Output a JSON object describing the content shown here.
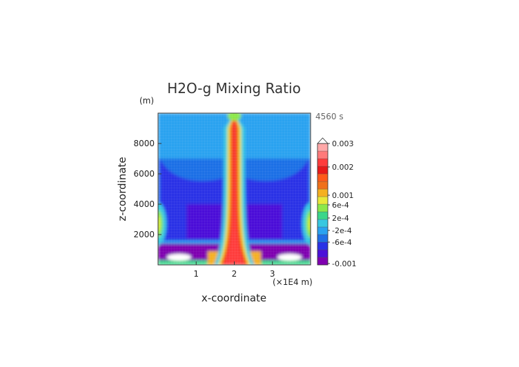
{
  "chart_data": {
    "type": "heatmap",
    "title": "H2O-g Mixing Ratio",
    "xlabel": "x-coordinate",
    "ylabel": "z-coordinate",
    "x_unit": "(×1E4 m)",
    "y_unit": "(m)",
    "time_label": "4560 s",
    "xlim": [
      0,
      4
    ],
    "ylim": [
      0,
      10000
    ],
    "x_ticks": [
      "1",
      "2",
      "3"
    ],
    "y_ticks": [
      "2000",
      "4000",
      "6000",
      "8000"
    ],
    "colorbar": {
      "labels": [
        "0.003",
        "0.002",
        "0.001",
        "6e-4",
        "2e-4",
        "-2e-4",
        "-6e-4",
        "-0.001"
      ],
      "colors": [
        "#7f00b0",
        "#4b10d8",
        "#2a32e6",
        "#1f6fe6",
        "#2aa2f0",
        "#38c8e0",
        "#3ad68a",
        "#8be84a",
        "#e8e83a",
        "#f5b020",
        "#f0701a",
        "#ff5a1a",
        "#e81a1a",
        "#ff3c3c",
        "#ff7a7a",
        "#ffa8a8"
      ]
    },
    "structures": {
      "background_level": 4,
      "upper_plume_level": 2,
      "dry_core_level": 1,
      "very_dry_level": 0,
      "column_peak_level": 13,
      "lens_level": 15
    }
  }
}
